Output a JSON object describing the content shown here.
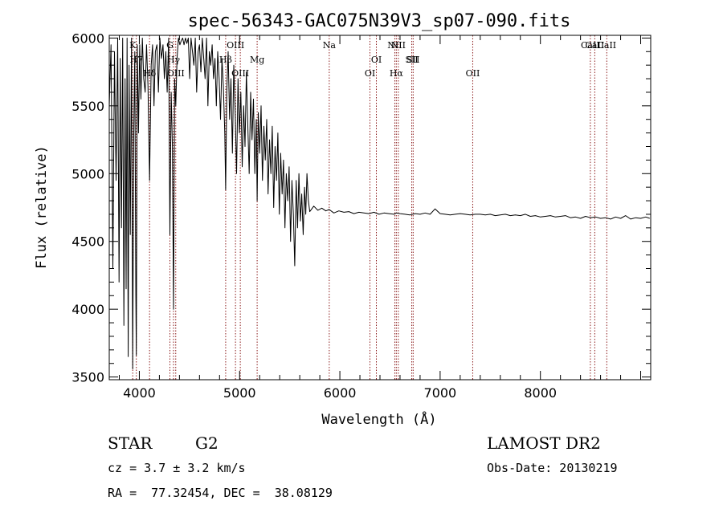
{
  "chart_data": {
    "type": "line",
    "title": "spec-56343-GAC075N39V3_sp07-090.fits",
    "xlabel": "Wavelength (Å)",
    "ylabel": "Flux (relative)",
    "xlim": [
      3700,
      9100
    ],
    "ylim": [
      3480,
      6020
    ],
    "xticks": [
      {
        "v": 4000,
        "label": "4000"
      },
      {
        "v": 5000,
        "label": "5000"
      },
      {
        "v": 6000,
        "label": "6000"
      },
      {
        "v": 7000,
        "label": "7000"
      },
      {
        "v": 8000,
        "label": "8000"
      }
    ],
    "yticks": [
      {
        "v": 3500,
        "label": "3500"
      },
      {
        "v": 4000,
        "label": "4000"
      },
      {
        "v": 4500,
        "label": "4500"
      },
      {
        "v": 5000,
        "label": "5000"
      },
      {
        "v": 5500,
        "label": "5500"
      },
      {
        "v": 6000,
        "label": "6000"
      }
    ],
    "line_color": "#000000",
    "marker_color": "#8b1a1a",
    "spectral_lines": [
      {
        "label": "K",
        "x": 3934,
        "row": 0
      },
      {
        "label": "H7",
        "x": 3970,
        "row": 1
      },
      {
        "label": "Hδ",
        "x": 4102,
        "row": 2
      },
      {
        "label": "G",
        "x": 4305,
        "row": 0
      },
      {
        "label": "Hγ",
        "x": 4341,
        "row": 1
      },
      {
        "label": "OIII",
        "x": 4363,
        "row": 2
      },
      {
        "label": "Hβ",
        "x": 4861,
        "row": 1
      },
      {
        "label": "OIII",
        "x": 4959,
        "row": 0
      },
      {
        "label": "OIII",
        "x": 5007,
        "row": 2
      },
      {
        "label": "Mg",
        "x": 5175,
        "row": 1
      },
      {
        "label": "Na",
        "x": 5894,
        "row": 0
      },
      {
        "label": "OI",
        "x": 6300,
        "row": 2
      },
      {
        "label": "OI",
        "x": 6364,
        "row": 1
      },
      {
        "label": "NII",
        "x": 6548,
        "row": 0
      },
      {
        "label": "Hα",
        "x": 6563,
        "row": 2
      },
      {
        "label": "NII",
        "x": 6583,
        "row": 0
      },
      {
        "label": "SII",
        "x": 6717,
        "row": 1
      },
      {
        "label": "SII",
        "x": 6731,
        "row": 1
      },
      {
        "label": "OII",
        "x": 7325,
        "row": 2
      },
      {
        "label": "CaII",
        "x": 8498,
        "row": 0
      },
      {
        "label": "CaII",
        "x": 8542,
        "row": 0
      },
      {
        "label": "CaII",
        "x": 8662,
        "row": 0
      }
    ],
    "series": [
      {
        "type": "line",
        "x": [
          3700,
          3718,
          3736,
          3752,
          3768,
          3784,
          3798,
          3810,
          3822,
          3834,
          3846,
          3858,
          3868,
          3878,
          3889,
          3898,
          3910,
          3922,
          3934,
          3944,
          3955,
          3965,
          3970,
          3980,
          3992,
          4004,
          4016,
          4030,
          4044,
          4058,
          4072,
          4086,
          4102,
          4118,
          4132,
          4146,
          4160,
          4176,
          4190,
          4205,
          4220,
          4236,
          4250,
          4264,
          4278,
          4292,
          4305,
          4318,
          4330,
          4341,
          4352,
          4363,
          4376,
          4390,
          4404,
          4418,
          4432,
          4446,
          4460,
          4474,
          4488,
          4502,
          4516,
          4530,
          4544,
          4558,
          4572,
          4586,
          4600,
          4614,
          4628,
          4642,
          4656,
          4670,
          4684,
          4698,
          4712,
          4726,
          4740,
          4754,
          4768,
          4782,
          4796,
          4810,
          4824,
          4838,
          4852,
          4861,
          4872,
          4886,
          4900,
          4914,
          4928,
          4942,
          4956,
          4970,
          4984,
          4998,
          5012,
          5026,
          5040,
          5054,
          5068,
          5082,
          5096,
          5110,
          5124,
          5138,
          5152,
          5166,
          5175,
          5186,
          5200,
          5214,
          5228,
          5242,
          5256,
          5270,
          5284,
          5298,
          5312,
          5326,
          5340,
          5354,
          5368,
          5382,
          5396,
          5410,
          5424,
          5438,
          5452,
          5466,
          5480,
          5494,
          5508,
          5522,
          5536,
          5550,
          5564,
          5578,
          5592,
          5606,
          5620,
          5634,
          5648,
          5660,
          5672,
          5686,
          5700,
          5740,
          5780,
          5820,
          5860,
          5894,
          5940,
          5990,
          6040,
          6090,
          6140,
          6190,
          6240,
          6290,
          6340,
          6390,
          6440,
          6490,
          6540,
          6563,
          6600,
          6650,
          6700,
          6750,
          6800,
          6850,
          6900,
          6950,
          7000,
          7050,
          7100,
          7150,
          7200,
          7250,
          7300,
          7350,
          7400,
          7450,
          7500,
          7550,
          7600,
          7650,
          7700,
          7750,
          7800,
          7850,
          7900,
          7950,
          8000,
          8050,
          8100,
          8150,
          8200,
          8250,
          8300,
          8350,
          8400,
          8450,
          8500,
          8550,
          8600,
          8650,
          8700,
          8750,
          8800,
          8850,
          8900,
          8950,
          9000,
          9050,
          9090
        ],
        "y": [
          5500,
          5950,
          4300,
          5900,
          4950,
          6000,
          4200,
          5850,
          4600,
          6000,
          3880,
          5700,
          4150,
          6000,
          3650,
          5800,
          4550,
          6000,
          3560,
          5300,
          5900,
          4100,
          3660,
          5950,
          5300,
          5950,
          5550,
          6000,
          5700,
          5600,
          5950,
          5650,
          4950,
          5800,
          5950,
          5500,
          5900,
          5950,
          5600,
          6000,
          5850,
          5950,
          5700,
          5900,
          5600,
          6000,
          4550,
          5600,
          5200,
          4000,
          5700,
          5500,
          5850,
          6000,
          5950,
          5980,
          6000,
          5950,
          6000,
          5960,
          6000,
          5700,
          6000,
          5900,
          5800,
          6000,
          5600,
          5900,
          5950,
          5750,
          6000,
          5850,
          5700,
          6000,
          5500,
          5900,
          5800,
          5950,
          5700,
          5850,
          5500,
          5900,
          5700,
          5400,
          5850,
          5650,
          5300,
          4880,
          5600,
          5900,
          5400,
          5700,
          5150,
          5800,
          5450,
          5000,
          5700,
          5300,
          5600,
          5050,
          5500,
          5200,
          5750,
          5350,
          5000,
          5600,
          5250,
          5550,
          5000,
          5400,
          4800,
          5450,
          5150,
          5500,
          4950,
          5350,
          5100,
          5400,
          4850,
          5250,
          5000,
          5350,
          4750,
          5200,
          4950,
          5300,
          4700,
          5150,
          4850,
          5100,
          4600,
          5000,
          4800,
          5050,
          4500,
          4950,
          4700,
          4320,
          4950,
          4600,
          5000,
          4650,
          4850,
          4550,
          4900,
          4700,
          5000,
          4800,
          4720,
          4760,
          4730,
          4745,
          4725,
          4735,
          4710,
          4725,
          4715,
          4720,
          4705,
          4715,
          4710,
          4705,
          4715,
          4700,
          4710,
          4705,
          4700,
          4710,
          4705,
          4700,
          4695,
          4705,
          4700,
          4710,
          4700,
          4740,
          4705,
          4700,
          4695,
          4700,
          4705,
          4700,
          4695,
          4700,
          4700,
          4695,
          4700,
          4690,
          4695,
          4700,
          4690,
          4695,
          4690,
          4700,
          4685,
          4690,
          4680,
          4685,
          4690,
          4680,
          4685,
          4690,
          4675,
          4680,
          4670,
          4685,
          4675,
          4680,
          4670,
          4675,
          4665,
          4680,
          4670,
          4690,
          4665,
          4675,
          4670,
          4680,
          4670
        ]
      }
    ]
  },
  "info": {
    "object_type": "STAR",
    "subclass": "G2",
    "survey": "LAMOST DR2",
    "redshift": "cz = 3.7 ± 3.2 km/s",
    "obs_date": "Obs-Date: 20130219",
    "coords": "RA =  77.32454, DEC =  38.08129"
  }
}
